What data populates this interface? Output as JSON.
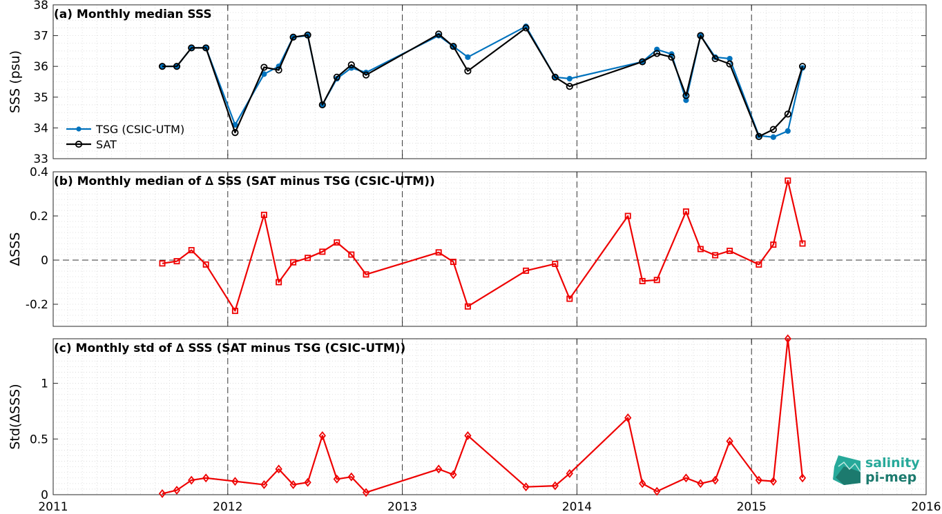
{
  "chart_data": [
    {
      "type": "line",
      "title": "(a) Monthly median SSS",
      "ylabel": "SSS (psu)",
      "ylim": [
        33,
        38
      ],
      "yticks": [
        "33",
        "34",
        "35",
        "36",
        "37",
        "38"
      ],
      "xlim": [
        2011,
        2016
      ],
      "xticks": [
        "2011",
        "2012",
        "2013",
        "2014",
        "2015",
        "2016"
      ],
      "grid": true,
      "legend_position": "bottom-left",
      "series": [
        {
          "name": "TSG (CSIC-UTM)",
          "color": "#0072bd",
          "marker": "dot",
          "x": [
            2011.625,
            2011.708,
            2011.792,
            2011.875,
            2012.042,
            2012.208,
            2012.292,
            2012.375,
            2012.458,
            2012.542,
            2012.625,
            2012.708,
            2012.792,
            2013.208,
            2013.292,
            2013.375,
            2013.708,
            2013.875,
            2013.958,
            2014.375,
            2014.458,
            2014.542,
            2014.625,
            2014.708,
            2014.792,
            2014.875,
            2015.042,
            2015.125,
            2015.208,
            2015.292
          ],
          "y": [
            36.0,
            36.0,
            36.6,
            36.6,
            34.1,
            35.75,
            36.0,
            36.95,
            37.0,
            34.75,
            35.6,
            35.95,
            35.8,
            37.0,
            36.65,
            36.3,
            37.3,
            35.65,
            35.6,
            36.15,
            36.55,
            36.4,
            34.9,
            37.0,
            36.3,
            36.25,
            33.75,
            33.7,
            33.9,
            35.95
          ]
        },
        {
          "name": "SAT",
          "color": "#000000",
          "marker": "circle",
          "x": [
            2011.625,
            2011.708,
            2011.792,
            2011.875,
            2012.042,
            2012.208,
            2012.292,
            2012.375,
            2012.458,
            2012.542,
            2012.625,
            2012.708,
            2012.792,
            2013.208,
            2013.292,
            2013.375,
            2013.708,
            2013.875,
            2013.958,
            2014.375,
            2014.458,
            2014.542,
            2014.625,
            2014.708,
            2014.792,
            2014.875,
            2015.042,
            2015.125,
            2015.208,
            2015.292
          ],
          "y": [
            36.0,
            36.0,
            36.6,
            36.6,
            33.85,
            35.97,
            35.88,
            36.95,
            37.02,
            34.75,
            35.65,
            36.05,
            35.72,
            37.05,
            36.65,
            35.85,
            37.25,
            35.65,
            35.35,
            36.15,
            36.42,
            36.3,
            35.05,
            37.0,
            36.25,
            36.08,
            33.72,
            33.95,
            34.45,
            36.0
          ]
        }
      ]
    },
    {
      "type": "line",
      "title": "(b) Monthly median of ∆ SSS (SAT minus TSG (CSIC-UTM))",
      "ylabel": "∆SSS",
      "ylim": [
        -0.3,
        0.4
      ],
      "yticks": [
        "-0.2",
        "0",
        "0.2",
        "0.4"
      ],
      "xlim": [
        2011,
        2016
      ],
      "grid": true,
      "series": [
        {
          "color": "#ee0000",
          "marker": "square",
          "x": [
            2011.625,
            2011.708,
            2011.792,
            2011.875,
            2012.042,
            2012.208,
            2012.292,
            2012.375,
            2012.458,
            2012.542,
            2012.625,
            2012.708,
            2012.792,
            2013.208,
            2013.292,
            2013.375,
            2013.708,
            2013.875,
            2013.958,
            2014.292,
            2014.375,
            2014.458,
            2014.625,
            2014.708,
            2014.792,
            2014.875,
            2015.042,
            2015.125,
            2015.208,
            2015.292
          ],
          "y": [
            -0.015,
            -0.005,
            0.045,
            -0.02,
            -0.23,
            0.205,
            -0.1,
            -0.01,
            0.01,
            0.038,
            0.08,
            0.025,
            -0.065,
            0.035,
            -0.008,
            -0.21,
            -0.048,
            -0.017,
            -0.175,
            0.2,
            -0.095,
            -0.09,
            0.22,
            0.05,
            0.022,
            0.042,
            -0.02,
            0.07,
            0.36,
            0.075
          ]
        }
      ]
    },
    {
      "type": "line",
      "title": "(c) Monthly std of ∆ SSS (SAT minus TSG (CSIC-UTM))",
      "ylabel": "Std(∆SSS)",
      "ylim": [
        0,
        1.4
      ],
      "yticks": [
        "0",
        "0.5",
        "1"
      ],
      "xlim": [
        2011,
        2016
      ],
      "xticks": [
        "2011",
        "2012",
        "2013",
        "2014",
        "2015",
        "2016"
      ],
      "grid": true,
      "series": [
        {
          "color": "#ee0000",
          "marker": "diamond",
          "x": [
            2011.625,
            2011.708,
            2011.792,
            2011.875,
            2012.042,
            2012.208,
            2012.292,
            2012.375,
            2012.458,
            2012.542,
            2012.625,
            2012.708,
            2012.792,
            2013.208,
            2013.292,
            2013.375,
            2013.708,
            2013.875,
            2013.958,
            2014.292,
            2014.375,
            2014.458,
            2014.625,
            2014.708,
            2014.792,
            2014.875,
            2015.042,
            2015.125,
            2015.208,
            2015.292
          ],
          "y": [
            0.01,
            0.04,
            0.13,
            0.15,
            0.12,
            0.09,
            0.23,
            0.09,
            0.11,
            0.53,
            0.14,
            0.16,
            0.02,
            0.23,
            0.18,
            0.53,
            0.07,
            0.08,
            0.19,
            0.69,
            0.1,
            0.03,
            0.15,
            0.1,
            0.13,
            0.48,
            0.13,
            0.12,
            1.4,
            0.15
          ]
        }
      ]
    }
  ],
  "logo": {
    "line1": "salinity",
    "line2": "pi-mep"
  }
}
